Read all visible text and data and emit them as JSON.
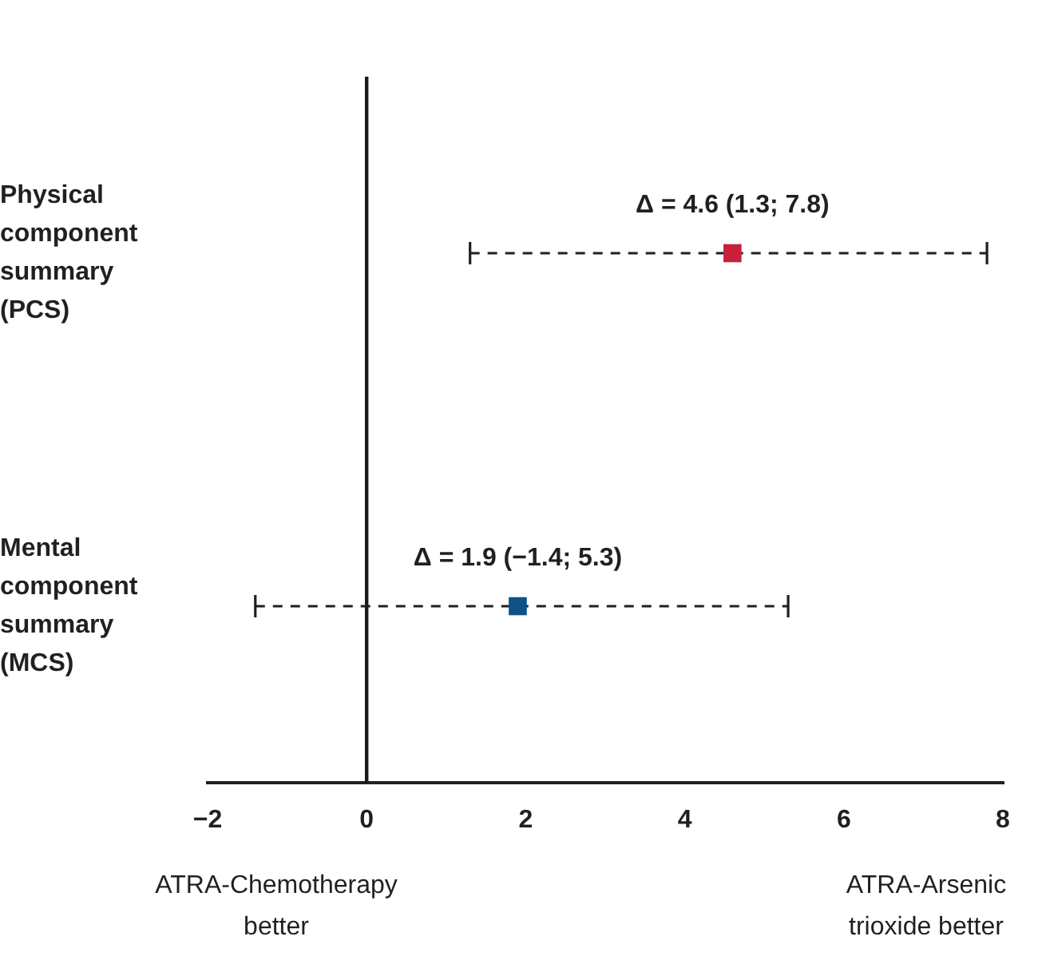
{
  "chart_data": {
    "type": "scatter",
    "orientation": "horizontal",
    "categories": [
      "Physical component summary (PCS)",
      "Mental component summary (MCS)"
    ],
    "values": [
      4.6,
      1.9
    ],
    "errors": [
      [
        1.3,
        7.8
      ],
      [
        -1.4,
        5.3
      ]
    ],
    "colors": [
      "#c8203a",
      "#0d5288"
    ],
    "value_labels": [
      "Δ = 4.6 (1.3; 7.8)",
      "Δ = 1.9 (−1.4; 5.3)"
    ],
    "marker": "square",
    "line_style": "dashed",
    "xlim": [
      -2,
      8
    ],
    "xticks": [
      {
        "value": -2,
        "label": "−2"
      },
      0,
      2,
      4,
      6,
      8
    ],
    "ref_lines": [
      {
        "axis": "x",
        "value": 0,
        "color": "#1a1a1a"
      }
    ],
    "annotations": [
      "ATRA-Chemotherapy better",
      "ATRA-Arsenic trioxide better"
    ]
  }
}
